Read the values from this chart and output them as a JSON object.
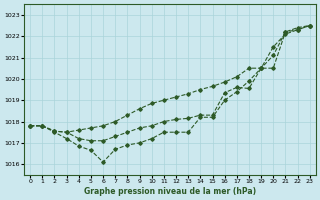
{
  "xlabel": "Graphe pression niveau de la mer (hPa)",
  "bg_color": "#cce8ee",
  "grid_color": "#aad4da",
  "line_color": "#2d5a27",
  "ylim": [
    1015.5,
    1023.5
  ],
  "xlim": [
    -0.5,
    23.5
  ],
  "yticks": [
    1016,
    1017,
    1018,
    1019,
    1020,
    1021,
    1022,
    1023
  ],
  "xticks": [
    0,
    1,
    2,
    3,
    4,
    5,
    6,
    7,
    8,
    9,
    10,
    11,
    12,
    13,
    14,
    15,
    16,
    17,
    18,
    19,
    20,
    21,
    22,
    23
  ],
  "series": [
    {
      "x": [
        0,
        1,
        2,
        3,
        4,
        5,
        6,
        7,
        8,
        9,
        10,
        11,
        12,
        13,
        14,
        15,
        16,
        17,
        18,
        19,
        20,
        21,
        22,
        23
      ],
      "y": [
        1017.8,
        1017.8,
        1017.5,
        1017.2,
        1016.85,
        1016.65,
        1016.1,
        1016.7,
        1016.9,
        1017.0,
        1017.2,
        1017.5,
        1017.5,
        1017.5,
        1018.2,
        1018.2,
        1019.0,
        1019.4,
        1019.9,
        1020.5,
        1021.1,
        1022.2,
        1022.4,
        1022.5
      ]
    },
    {
      "x": [
        0,
        1,
        2,
        3,
        4,
        5,
        6,
        7,
        8,
        9,
        10,
        11,
        12,
        13,
        14,
        15,
        16,
        17,
        18,
        19,
        20,
        21,
        22,
        23
      ],
      "y": [
        1017.8,
        1017.8,
        1017.55,
        1017.5,
        1017.6,
        1017.7,
        1017.8,
        1018.0,
        1018.3,
        1018.6,
        1018.85,
        1019.0,
        1019.15,
        1019.3,
        1019.5,
        1019.65,
        1019.85,
        1020.1,
        1020.5,
        1020.5,
        1021.5,
        1022.1,
        1022.3,
        1022.5
      ]
    },
    {
      "x": [
        0,
        1,
        2,
        3,
        4,
        5,
        6,
        7,
        8,
        9,
        10,
        11,
        12,
        13,
        14,
        15,
        16,
        17,
        18,
        19,
        20,
        21,
        22,
        23
      ],
      "y": [
        1017.8,
        1017.8,
        1017.55,
        1017.5,
        1017.2,
        1017.1,
        1017.1,
        1017.3,
        1017.5,
        1017.7,
        1017.8,
        1018.0,
        1018.1,
        1018.15,
        1018.3,
        1018.3,
        1019.35,
        1019.6,
        1019.55,
        1020.5,
        1020.5,
        1022.2,
        1022.3,
        1022.5
      ]
    }
  ]
}
